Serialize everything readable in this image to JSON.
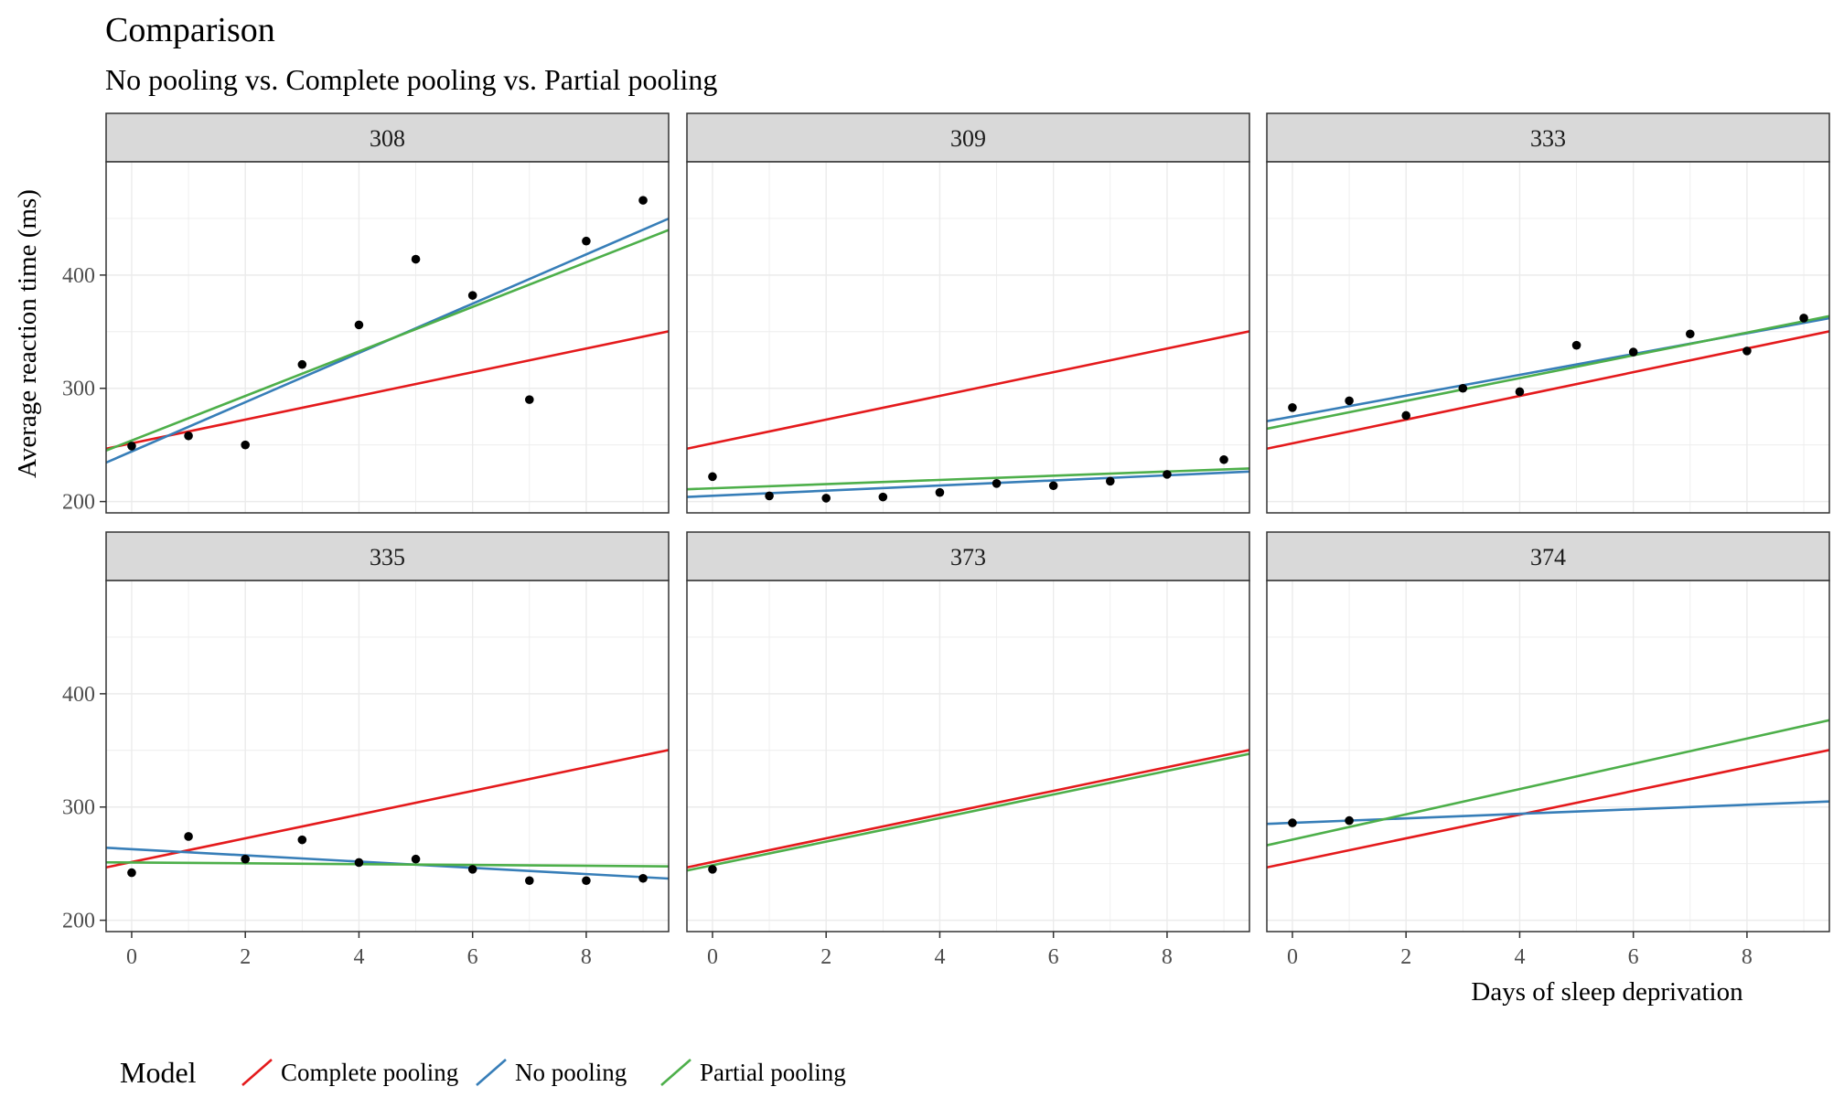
{
  "chart_data": {
    "type": "line",
    "title": "Comparison",
    "subtitle": "No pooling vs. Complete pooling vs. Partial pooling",
    "xlabel": "Days of sleep deprivation",
    "ylabel": "Average reaction time (ms)",
    "xlim": [
      -0.45,
      9.45
    ],
    "ylim": [
      190,
      500
    ],
    "x_ticks": [
      0,
      2,
      4,
      6,
      8
    ],
    "y_ticks": [
      200,
      300,
      400
    ],
    "grid": true,
    "legend": {
      "title": "Model",
      "position": "bottom-left",
      "entries": [
        "Complete pooling",
        "No pooling",
        "Partial pooling"
      ]
    },
    "series_colors": {
      "Complete pooling": "#e41a1c",
      "No pooling": "#377eb8",
      "Partial pooling": "#4daf4a"
    },
    "point_color": "#000000",
    "strip_fill": "#d9d9d9",
    "facets": [
      {
        "label": "308",
        "points": [
          [
            0,
            249
          ],
          [
            1,
            258
          ],
          [
            2,
            250
          ],
          [
            3,
            321
          ],
          [
            4,
            356
          ],
          [
            5,
            414
          ],
          [
            6,
            382
          ],
          [
            7,
            290
          ],
          [
            8,
            430
          ],
          [
            9,
            466
          ]
        ],
        "lines": [
          {
            "name": "Complete pooling",
            "intercept": 251.4,
            "slope": 10.47
          },
          {
            "name": "No pooling",
            "intercept": 244.2,
            "slope": 21.76
          },
          {
            "name": "Partial pooling",
            "intercept": 253.9,
            "slope": 19.67
          }
        ]
      },
      {
        "label": "309",
        "points": [
          [
            0,
            222
          ],
          [
            1,
            205
          ],
          [
            2,
            203
          ],
          [
            3,
            204
          ],
          [
            4,
            208
          ],
          [
            5,
            216
          ],
          [
            6,
            214
          ],
          [
            7,
            218
          ],
          [
            8,
            224
          ],
          [
            9,
            237
          ]
        ],
        "lines": [
          {
            "name": "Complete pooling",
            "intercept": 251.4,
            "slope": 10.47
          },
          {
            "name": "No pooling",
            "intercept": 205.1,
            "slope": 2.26
          },
          {
            "name": "Partial pooling",
            "intercept": 211.7,
            "slope": 1.85
          }
        ]
      },
      {
        "label": "333",
        "points": [
          [
            0,
            283
          ],
          [
            1,
            289
          ],
          [
            2,
            276
          ],
          [
            3,
            300
          ],
          [
            4,
            297
          ],
          [
            5,
            338
          ],
          [
            6,
            332
          ],
          [
            7,
            348
          ],
          [
            8,
            333
          ],
          [
            9,
            362
          ]
        ],
        "lines": [
          {
            "name": "Complete pooling",
            "intercept": 251.4,
            "slope": 10.47
          },
          {
            "name": "No pooling",
            "intercept": 275.1,
            "slope": 9.19
          },
          {
            "name": "Partial pooling",
            "intercept": 268.8,
            "slope": 10.05
          }
        ]
      },
      {
        "label": "335",
        "points": [
          [
            0,
            242
          ],
          [
            1,
            274
          ],
          [
            2,
            254
          ],
          [
            3,
            271
          ],
          [
            4,
            251
          ],
          [
            5,
            254
          ],
          [
            6,
            245
          ],
          [
            7,
            235
          ],
          [
            8,
            235
          ],
          [
            9,
            237
          ]
        ],
        "lines": [
          {
            "name": "Complete pooling",
            "intercept": 251.4,
            "slope": 10.47
          },
          {
            "name": "No pooling",
            "intercept": 262.8,
            "slope": -2.75
          },
          {
            "name": "Partial pooling",
            "intercept": 251.0,
            "slope": -0.36
          }
        ]
      },
      {
        "label": "373",
        "points": [
          [
            0,
            245
          ]
        ],
        "lines": [
          {
            "name": "Complete pooling",
            "intercept": 251.4,
            "slope": 10.47
          },
          {
            "name": "Partial pooling",
            "intercept": 248.6,
            "slope": 10.41
          }
        ]
      },
      {
        "label": "374",
        "points": [
          [
            0,
            286
          ],
          [
            1,
            288
          ]
        ],
        "lines": [
          {
            "name": "Complete pooling",
            "intercept": 251.4,
            "slope": 10.47
          },
          {
            "name": "No pooling",
            "intercept": 286.0,
            "slope": 2.0
          },
          {
            "name": "Partial pooling",
            "intercept": 271.2,
            "slope": 11.16
          }
        ]
      }
    ]
  }
}
